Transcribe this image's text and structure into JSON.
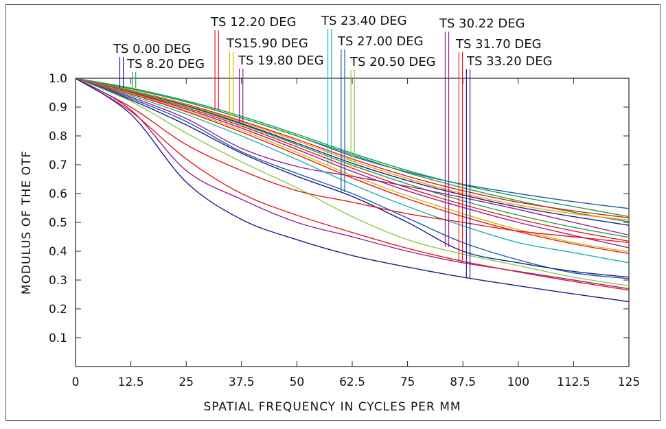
{
  "chart_data": {
    "type": "line",
    "xlabel": "SPATIAL FREQUENCY IN CYCLES PER MM",
    "ylabel": "MODULUS OF THE OTF",
    "xlim": [
      0,
      125
    ],
    "ylim": [
      0,
      1.0
    ],
    "grid": false,
    "x_ticks": [
      "0",
      "12.5",
      "25",
      "37.5",
      "50",
      "62.5",
      "75",
      "87.5",
      "100",
      "112.5",
      "125"
    ],
    "y_ticks": [
      "0.1",
      "0.2",
      "0.3",
      "0.4",
      "0.5",
      "0.6",
      "0.7",
      "0.8",
      "0.9",
      "1.0"
    ],
    "x": [
      0,
      12.5,
      25,
      37.5,
      50,
      62.5,
      75,
      87.5,
      100,
      112.5,
      125
    ],
    "field_labels": [
      {
        "text": "TS 0.00  DEG",
        "color": "#1a1a8c",
        "freq": [
          10.0,
          10.8
        ]
      },
      {
        "text": "TS 8.20  DEG",
        "color": "#1aa04a",
        "freq": [
          12.8,
          13.6
        ]
      },
      {
        "text": "TS 12.20  DEG",
        "color": "#e31a1c",
        "freq": [
          31.5,
          32.3
        ]
      },
      {
        "text": "TS15.90  DEG",
        "color": "#d4b800",
        "freq": [
          34.8,
          35.6
        ]
      },
      {
        "text": "TS 19.80  DEG",
        "color": "#9c1a8c",
        "freq": [
          37.0,
          37.8
        ]
      },
      {
        "text": "TS  23.40  DEG",
        "color": "#1ab0b0",
        "freq": [
          57.0,
          57.8
        ]
      },
      {
        "text": "TS  27.00  DEG",
        "color": "#1a5aa8",
        "freq": [
          60.0,
          60.8
        ]
      },
      {
        "text": "TS  20.50  DEG",
        "color": "#88cc44",
        "freq": [
          62.2,
          63.0
        ]
      },
      {
        "text": "TS 30.22  DEG",
        "color": "#9c1a8c",
        "freq": [
          83.5,
          84.3
        ]
      },
      {
        "text": "TS 31.70  DEG",
        "color": "#e31a1c",
        "freq": [
          86.6,
          87.4
        ]
      },
      {
        "text": "TS 33.20  DEG",
        "color": "#1a1a8c",
        "freq": [
          88.3,
          89.1
        ]
      }
    ],
    "series": [
      {
        "color": "#1a5aa8",
        "values": [
          1.0,
          0.963,
          0.918,
          0.862,
          0.8,
          0.73,
          0.675,
          0.632,
          0.6,
          0.572,
          0.548
        ]
      },
      {
        "color": "#1aa04a",
        "values": [
          1.0,
          0.966,
          0.922,
          0.868,
          0.806,
          0.74,
          0.68,
          0.63,
          0.59,
          0.555,
          0.52
        ]
      },
      {
        "color": "#1aa04a",
        "values": [
          1.0,
          0.963,
          0.918,
          0.862,
          0.8,
          0.735,
          0.672,
          0.62,
          0.575,
          0.535,
          0.502
        ]
      },
      {
        "color": "#e31a1c",
        "values": [
          1.0,
          0.958,
          0.91,
          0.852,
          0.788,
          0.72,
          0.66,
          0.61,
          0.57,
          0.54,
          0.516
        ]
      },
      {
        "color": "#e8a000",
        "values": [
          1.0,
          0.957,
          0.908,
          0.848,
          0.783,
          0.713,
          0.652,
          0.6,
          0.56,
          0.53,
          0.508
        ]
      },
      {
        "color": "#1a1a8c",
        "values": [
          1.0,
          0.955,
          0.905,
          0.843,
          0.775,
          0.705,
          0.645,
          0.595,
          0.553,
          0.52,
          0.49
        ]
      },
      {
        "color": "#1aa04a",
        "values": [
          1.0,
          0.955,
          0.903,
          0.84,
          0.77,
          0.698,
          0.633,
          0.575,
          0.525,
          0.483,
          0.448
        ]
      },
      {
        "color": "#e31a1c",
        "values": [
          1.0,
          0.952,
          0.898,
          0.834,
          0.762,
          0.688,
          0.62,
          0.562,
          0.512,
          0.47,
          0.435
        ]
      },
      {
        "color": "#9c1a8c",
        "values": [
          1.0,
          0.95,
          0.893,
          0.827,
          0.753,
          0.677,
          0.609,
          0.552,
          0.5,
          0.455,
          0.412
        ]
      },
      {
        "color": "#d4b800",
        "values": [
          1.0,
          0.948,
          0.888,
          0.82,
          0.743,
          0.663,
          0.592,
          0.53,
          0.475,
          0.43,
          0.398
        ]
      },
      {
        "color": "#e31a1c",
        "values": [
          1.0,
          0.945,
          0.884,
          0.813,
          0.735,
          0.654,
          0.582,
          0.52,
          0.468,
          0.425,
          0.392
        ]
      },
      {
        "color": "#1ab0b0",
        "values": [
          1.0,
          0.94,
          0.875,
          0.8,
          0.718,
          0.632,
          0.555,
          0.488,
          0.43,
          0.395,
          0.36
        ]
      },
      {
        "color": "#9c1a8c",
        "values": [
          1.0,
          0.935,
          0.86,
          0.757,
          0.694,
          0.66,
          0.625,
          0.586,
          0.545,
          0.5,
          0.456
        ]
      },
      {
        "color": "#1a5aa8",
        "values": [
          1.0,
          0.93,
          0.85,
          0.745,
          0.67,
          0.6,
          0.515,
          0.43,
          0.37,
          0.325,
          0.305
        ]
      },
      {
        "color": "#1a1a8c",
        "values": [
          1.0,
          0.925,
          0.838,
          0.74,
          0.66,
          0.59,
          0.5,
          0.4,
          0.36,
          0.33,
          0.31
        ]
      },
      {
        "color": "#88cc44",
        "values": [
          1.0,
          0.92,
          0.81,
          0.71,
          0.62,
          0.52,
          0.44,
          0.39,
          0.35,
          0.31,
          0.28
        ]
      },
      {
        "color": "#e31a1c",
        "values": [
          1.0,
          0.9,
          0.77,
          0.68,
          0.61,
          0.57,
          0.53,
          0.5,
          0.47,
          0.45,
          0.43
        ]
      },
      {
        "color": "#9c1a8c",
        "values": [
          1.0,
          0.89,
          0.68,
          0.58,
          0.5,
          0.45,
          0.4,
          0.36,
          0.33,
          0.3,
          0.27
        ]
      },
      {
        "color": "#e31a1c",
        "values": [
          1.0,
          0.885,
          0.72,
          0.6,
          0.525,
          0.465,
          0.41,
          0.365,
          0.328,
          0.295,
          0.265
        ]
      },
      {
        "color": "#1a1a8c",
        "values": [
          1.0,
          0.875,
          0.64,
          0.51,
          0.44,
          0.385,
          0.345,
          0.31,
          0.28,
          0.252,
          0.225
        ]
      }
    ]
  }
}
